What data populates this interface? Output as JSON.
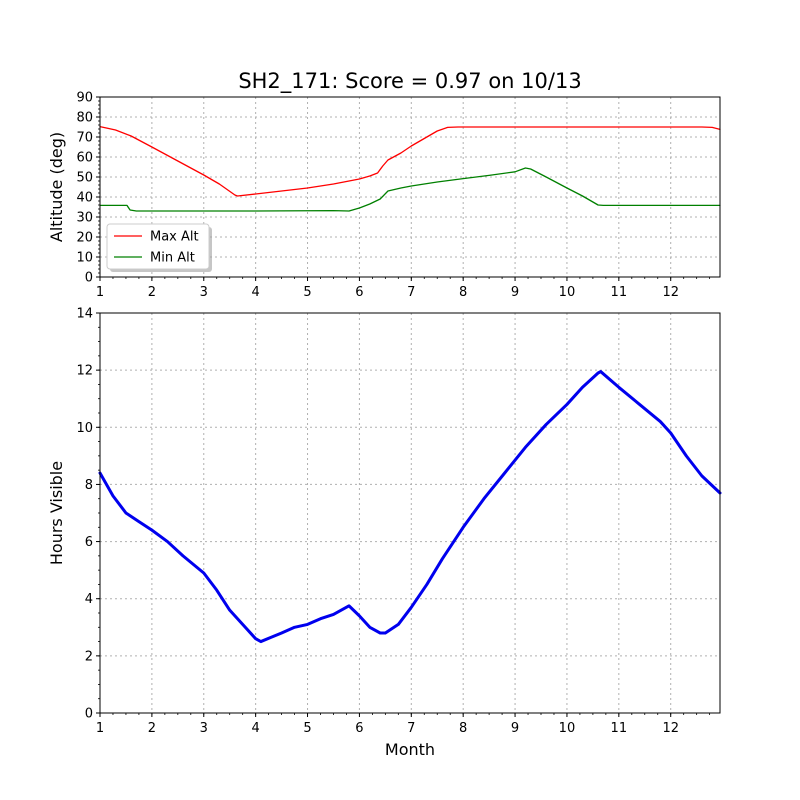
{
  "title": "SH2_171: Score = 0.97 on 10/13",
  "chart_data": [
    {
      "type": "line",
      "ylabel": "Altitude (deg)",
      "xlabel": "",
      "xlim": [
        1,
        12.95
      ],
      "ylim": [
        0,
        90
      ],
      "xticks": [
        1,
        2,
        3,
        4,
        5,
        6,
        7,
        8,
        9,
        10,
        11,
        12
      ],
      "yticks": [
        0,
        10,
        20,
        30,
        40,
        50,
        60,
        70,
        80,
        90
      ],
      "grid": true,
      "legend": {
        "placement": "lower-left",
        "entries": [
          "Max Alt",
          "Min Alt"
        ]
      },
      "series": [
        {
          "name": "Max Alt",
          "color": "#ff0000",
          "points": [
            [
              1.0,
              75.2
            ],
            [
              1.3,
              73.5
            ],
            [
              1.6,
              70.5
            ],
            [
              2.0,
              65.0
            ],
            [
              2.5,
              58.0
            ],
            [
              3.0,
              51.0
            ],
            [
              3.3,
              46.5
            ],
            [
              3.6,
              41.0
            ],
            [
              3.65,
              40.5
            ],
            [
              4.0,
              41.5
            ],
            [
              4.5,
              43.0
            ],
            [
              5.0,
              44.5
            ],
            [
              5.5,
              46.5
            ],
            [
              5.8,
              48.0
            ],
            [
              6.0,
              49.0
            ],
            [
              6.2,
              50.5
            ],
            [
              6.35,
              52.0
            ],
            [
              6.45,
              55.5
            ],
            [
              6.55,
              58.5
            ],
            [
              6.8,
              62.0
            ],
            [
              7.0,
              65.5
            ],
            [
              7.3,
              70.0
            ],
            [
              7.5,
              73.0
            ],
            [
              7.7,
              74.8
            ],
            [
              7.9,
              75.0
            ],
            [
              12.6,
              75.0
            ],
            [
              12.8,
              74.8
            ],
            [
              12.95,
              73.8
            ]
          ]
        },
        {
          "name": "Min Alt",
          "color": "#008000",
          "points": [
            [
              1.0,
              35.8
            ],
            [
              1.52,
              35.8
            ],
            [
              1.58,
              33.5
            ],
            [
              1.7,
              33.0
            ],
            [
              2.0,
              33.0
            ],
            [
              4.0,
              33.0
            ],
            [
              5.5,
              33.2
            ],
            [
              5.8,
              33.0
            ],
            [
              6.0,
              34.5
            ],
            [
              6.2,
              36.5
            ],
            [
              6.4,
              39.0
            ],
            [
              6.55,
              43.0
            ],
            [
              6.8,
              44.5
            ],
            [
              7.0,
              45.5
            ],
            [
              7.5,
              47.5
            ],
            [
              8.0,
              49.2
            ],
            [
              8.5,
              50.8
            ],
            [
              9.0,
              52.6
            ],
            [
              9.2,
              54.5
            ],
            [
              9.3,
              54.0
            ],
            [
              9.6,
              50.0
            ],
            [
              10.0,
              44.5
            ],
            [
              10.3,
              40.5
            ],
            [
              10.6,
              36.0
            ],
            [
              10.7,
              35.8
            ],
            [
              11.5,
              35.8
            ],
            [
              12.95,
              35.8
            ]
          ]
        }
      ]
    },
    {
      "type": "line",
      "ylabel": "Hours Visible",
      "xlabel": "Month",
      "xlim": [
        1,
        12.95
      ],
      "ylim": [
        0,
        14
      ],
      "xticks": [
        1,
        2,
        3,
        4,
        5,
        6,
        7,
        8,
        9,
        10,
        11,
        12
      ],
      "yticks": [
        0,
        2,
        4,
        6,
        8,
        10,
        12,
        14
      ],
      "grid": true,
      "series": [
        {
          "color": "#0000ee",
          "points": [
            [
              1.0,
              8.4
            ],
            [
              1.25,
              7.6
            ],
            [
              1.5,
              7.0
            ],
            [
              1.75,
              6.7
            ],
            [
              2.0,
              6.4
            ],
            [
              2.3,
              6.0
            ],
            [
              2.6,
              5.5
            ],
            [
              3.0,
              4.9
            ],
            [
              3.25,
              4.3
            ],
            [
              3.5,
              3.6
            ],
            [
              3.8,
              3.0
            ],
            [
              4.0,
              2.6
            ],
            [
              4.1,
              2.5
            ],
            [
              4.3,
              2.65
            ],
            [
              4.5,
              2.8
            ],
            [
              4.75,
              3.0
            ],
            [
              5.0,
              3.1
            ],
            [
              5.25,
              3.3
            ],
            [
              5.5,
              3.45
            ],
            [
              5.8,
              3.75
            ],
            [
              6.0,
              3.4
            ],
            [
              6.2,
              3.0
            ],
            [
              6.4,
              2.8
            ],
            [
              6.5,
              2.8
            ],
            [
              6.75,
              3.1
            ],
            [
              7.0,
              3.7
            ],
            [
              7.3,
              4.5
            ],
            [
              7.6,
              5.4
            ],
            [
              8.0,
              6.5
            ],
            [
              8.4,
              7.5
            ],
            [
              8.8,
              8.4
            ],
            [
              9.2,
              9.3
            ],
            [
              9.6,
              10.1
            ],
            [
              10.0,
              10.8
            ],
            [
              10.3,
              11.4
            ],
            [
              10.6,
              11.9
            ],
            [
              10.65,
              11.95
            ],
            [
              11.0,
              11.4
            ],
            [
              11.4,
              10.8
            ],
            [
              11.8,
              10.2
            ],
            [
              12.0,
              9.8
            ],
            [
              12.3,
              9.0
            ],
            [
              12.6,
              8.3
            ],
            [
              12.95,
              7.7
            ]
          ]
        }
      ]
    }
  ]
}
